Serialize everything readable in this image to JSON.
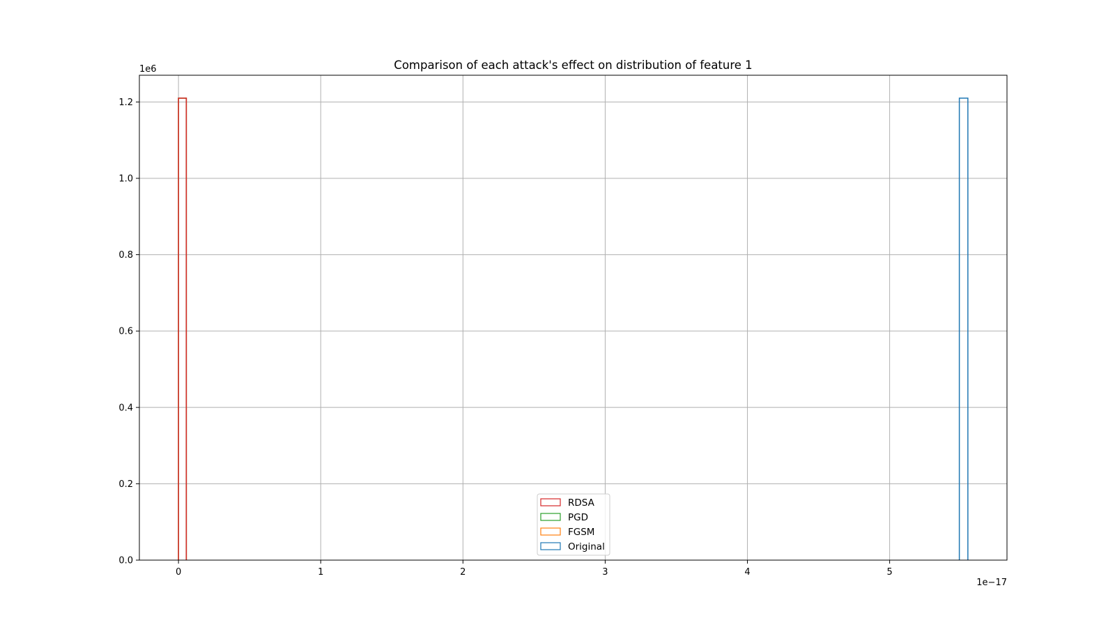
{
  "chart_data": {
    "type": "histogram",
    "title": "Comparison of each attack's effect on distribution of feature 1",
    "xlabel": "",
    "ylabel": "",
    "x_offset_label": "1e−17",
    "y_offset_label": "1e6",
    "xlim": [
      -0.275,
      5.825
    ],
    "ylim": [
      0,
      1.27
    ],
    "x_ticks": [
      0,
      1,
      2,
      3,
      4,
      5
    ],
    "x_tick_labels": [
      "0",
      "1",
      "2",
      "3",
      "4",
      "5"
    ],
    "y_ticks": [
      0.0,
      0.2,
      0.4,
      0.6,
      0.8,
      1.0,
      1.2
    ],
    "y_tick_labels": [
      "0.0",
      "0.2",
      "0.4",
      "0.6",
      "0.8",
      "1.0",
      "1.2"
    ],
    "grid": true,
    "legend_position": "lower center",
    "series": [
      {
        "name": "Original",
        "color": "#1f77b4",
        "bins": [
          {
            "x0": 5.49,
            "x1": 5.55,
            "count": 1.21
          }
        ]
      },
      {
        "name": "FGSM",
        "color": "#ff7f0e",
        "bins": [
          {
            "x0": 0.0,
            "x1": 0.055,
            "count": 1.21
          }
        ]
      },
      {
        "name": "PGD",
        "color": "#2ca02c",
        "bins": [
          {
            "x0": 0.0,
            "x1": 0.055,
            "count": 1.21
          }
        ]
      },
      {
        "name": "RDSA",
        "color": "#d62728",
        "bins": [
          {
            "x0": 0.0,
            "x1": 0.055,
            "count": 1.21
          }
        ]
      }
    ],
    "legend_order": [
      "RDSA",
      "PGD",
      "FGSM",
      "Original"
    ]
  }
}
